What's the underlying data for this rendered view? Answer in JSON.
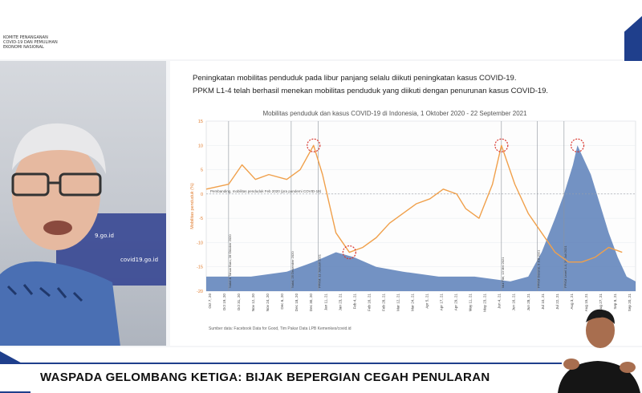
{
  "org_lines": [
    "KOMITE PENANGANAN",
    "COVID-19 DAN PEMULIHAN",
    "EKONOMI NASIONAL"
  ],
  "video": {
    "url_top": "9.go.id",
    "url_bottom": "covid19.go.id"
  },
  "slide": {
    "headline_1": "Peningkatan mobilitas penduduk pada libur panjang selalu diikuti peningkatan kasus COVID-19.",
    "headline_2": "PPKM L1-4 telah berhasil menekan mobilitas penduduk yang diikuti dengan penurunan kasus COVID-19.",
    "source": "Sumber data: Facebook Data for Good, Tim Pakar Data LPB Kemenkes/covid.id"
  },
  "lower_third": {
    "text": "WASPADA GELOMBANG KETIGA: BIJAK BEPERGIAN CEGAH PENULARAN"
  },
  "colors": {
    "mobility_line": "#f0a04b",
    "cases_area": "#5b7fb8",
    "highlight_circle": "#d9342b",
    "brand_blue": "#1f3f8c"
  },
  "chart_data": {
    "type": "area",
    "title": "Mobilitas penduduk dan kasus COVID-19 di Indonesia, 1 Oktober 2020 - 22 September 2021",
    "ylabel": "Mobilitas penduduk (%)",
    "ylim": [
      -20,
      15
    ],
    "yticks": [
      15,
      10,
      5,
      0,
      -5,
      -10,
      -15,
      -20
    ],
    "baseline_label": "Pembanding, mobilitas penduduk Feb 2020 (pra pandemi COVID-19)",
    "x_labels": [
      "Oct 7, 20",
      "Oct 19, 20",
      "Oct 31, 20",
      "Nov 12, 20",
      "Nov 24, 20",
      "Dec 6, 20",
      "Dec 18, 20",
      "Dec 30, 20",
      "Jan 11, 21",
      "Jan 23, 21",
      "Feb 4, 21",
      "Feb 16, 21",
      "Feb 28, 21",
      "Mar 12, 21",
      "Mar 24, 21",
      "Apr 5, 21",
      "Apr 17, 21",
      "Apr 29, 21",
      "May 11, 21",
      "May 23, 21",
      "Jun 4, 21",
      "Jun 16, 21",
      "Jun 28, 21",
      "Jul 10, 21",
      "Jul 22, 21",
      "Aug 3, 21",
      "Aug 15, 21",
      "Aug 27, 21",
      "Sep 8, 21",
      "Sep 20, 21"
    ],
    "annotations": [
      {
        "x": 5,
        "text": "Natal & Tahun Baru, 28 Oktober 2020"
      },
      {
        "x": 19,
        "text": "Natal, 25 Desember 2020"
      },
      {
        "x": 25,
        "text": "PPKM, 11 Januari 2021"
      },
      {
        "x": 66,
        "text": "Idul Fitri, 13 Mei 2021"
      },
      {
        "x": 74,
        "text": "PPKM Darurat, 3 Juli 2021"
      },
      {
        "x": 80,
        "text": "PPKM Level 1-4, 26 Juli 2021"
      }
    ],
    "series": [
      {
        "name": "Mobilitas penduduk",
        "kind": "line",
        "values": [
          [
            0,
            1
          ],
          [
            5,
            2
          ],
          [
            8,
            6
          ],
          [
            11,
            3
          ],
          [
            14,
            4
          ],
          [
            18,
            3
          ],
          [
            21,
            5
          ],
          [
            24,
            10
          ],
          [
            26,
            4
          ],
          [
            29,
            -8
          ],
          [
            32,
            -12
          ],
          [
            35,
            -11
          ],
          [
            38,
            -9
          ],
          [
            41,
            -6
          ],
          [
            44,
            -4
          ],
          [
            47,
            -2
          ],
          [
            50,
            -1
          ],
          [
            53,
            1
          ],
          [
            56,
            0
          ],
          [
            58,
            -3
          ],
          [
            61,
            -5
          ],
          [
            64,
            2
          ],
          [
            66,
            10
          ],
          [
            69,
            2
          ],
          [
            72,
            -4
          ],
          [
            75,
            -8
          ],
          [
            78,
            -12
          ],
          [
            81,
            -14
          ],
          [
            84,
            -14
          ],
          [
            87,
            -13
          ],
          [
            90,
            -11
          ],
          [
            93,
            -12
          ]
        ]
      },
      {
        "name": "Kasus COVID-19",
        "kind": "area",
        "values": [
          [
            0,
            -17
          ],
          [
            10,
            -17
          ],
          [
            18,
            -16
          ],
          [
            24,
            -14
          ],
          [
            29,
            -12
          ],
          [
            33,
            -13
          ],
          [
            38,
            -15
          ],
          [
            44,
            -16
          ],
          [
            52,
            -17
          ],
          [
            60,
            -17
          ],
          [
            68,
            -18
          ],
          [
            72,
            -17
          ],
          [
            75,
            -12
          ],
          [
            78,
            -5
          ],
          [
            80,
            0
          ],
          [
            82,
            6
          ],
          [
            83,
            10
          ],
          [
            84,
            8
          ],
          [
            86,
            4
          ],
          [
            88,
            -2
          ],
          [
            90,
            -8
          ],
          [
            92,
            -13
          ],
          [
            94,
            -17
          ],
          [
            96,
            -18
          ]
        ]
      }
    ],
    "highlight_points": [
      [
        24,
        10
      ],
      [
        32,
        -12
      ],
      [
        66,
        10
      ],
      [
        83,
        10
      ]
    ]
  }
}
